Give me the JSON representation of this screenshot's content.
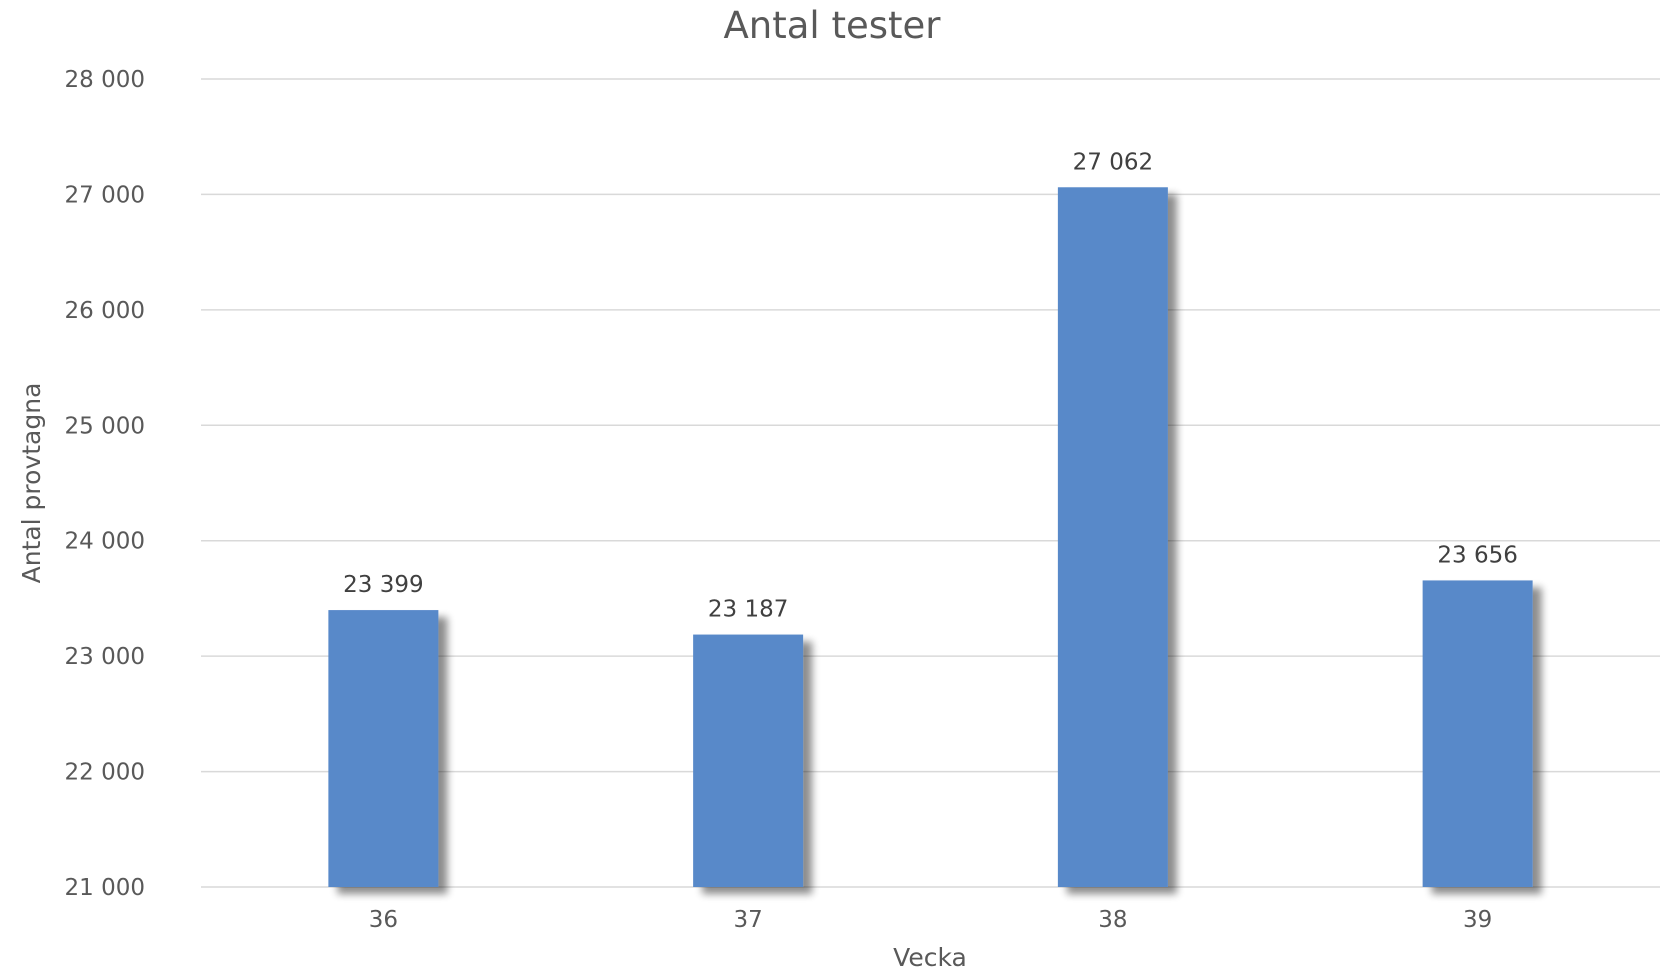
{
  "chart_data": {
    "type": "bar",
    "title": "Antal tester",
    "xlabel": "Vecka",
    "ylabel": "Antal provtagna",
    "categories": [
      "36",
      "37",
      "38",
      "39"
    ],
    "values": [
      23399,
      23187,
      27062,
      23656
    ],
    "data_labels": [
      "23 399",
      "23 187",
      "27 062",
      "23 656"
    ],
    "ylim": [
      21000,
      28000
    ],
    "yticks": [
      21000,
      22000,
      23000,
      24000,
      25000,
      26000,
      27000,
      28000
    ],
    "ytick_labels": [
      "21 000",
      "22 000",
      "23 000",
      "24 000",
      "25 000",
      "26 000",
      "27 000",
      "28 000"
    ],
    "grid": true,
    "bar_color": "#5889c9",
    "bar_shadow_color": "#b3b3b3",
    "gridline_color": "#d9d9d9",
    "text_color": "#595959"
  }
}
